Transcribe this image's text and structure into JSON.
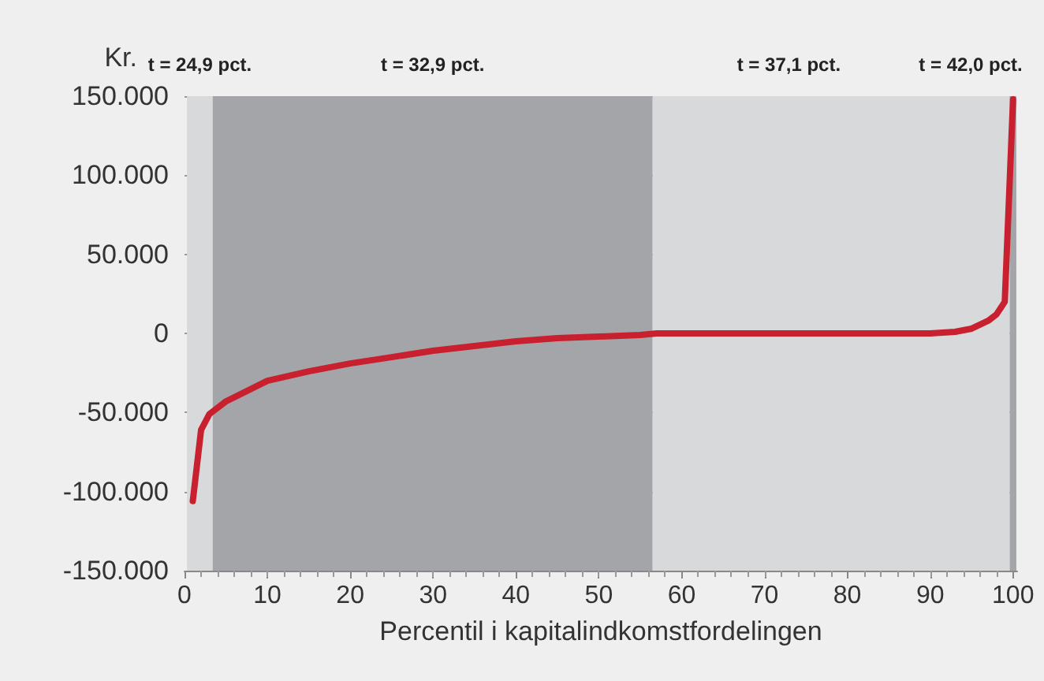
{
  "chart_data": {
    "type": "line",
    "ylabel": "Kr.",
    "xlabel": "Percentil i kapitalindkomstfordelingen",
    "x": [
      1,
      2,
      3,
      5,
      10,
      15,
      20,
      25,
      30,
      35,
      40,
      45,
      50,
      55,
      57,
      90,
      93,
      95,
      97,
      98,
      99,
      100
    ],
    "series": [
      {
        "color": "#c8202f",
        "values": [
          -106000,
          -61000,
          -51000,
          -43000,
          -30000,
          -24000,
          -19000,
          -15000,
          -11000,
          -8000,
          -5000,
          -3000,
          -2000,
          -1000,
          0,
          0,
          1000,
          3000,
          8000,
          12000,
          20000,
          148000
        ]
      }
    ],
    "xlim": [
      0,
      100.5
    ],
    "xticks": [
      0,
      10,
      20,
      30,
      40,
      50,
      60,
      70,
      80,
      90,
      100
    ],
    "ylim": [
      -150000,
      150000
    ],
    "yticks": [
      {
        "value": -150000,
        "label": "-150.000"
      },
      {
        "value": -100000,
        "label": "-100.000"
      },
      {
        "value": -50000,
        "label": "-50.000"
      },
      {
        "value": 0,
        "label": "0"
      },
      {
        "value": 50000,
        "label": "50.000"
      },
      {
        "value": 100000,
        "label": "100.000"
      },
      {
        "value": 150000,
        "label": "150.000"
      }
    ],
    "bands": [
      {
        "axis": "x",
        "from": 0.3,
        "to": 3.4,
        "label": "t = 24,9 pct.",
        "color": "#d8d9db"
      },
      {
        "axis": "x",
        "from": 3.4,
        "to": 56.5,
        "label": "t = 32,9 pct.",
        "color": "#a3a5a8"
      },
      {
        "axis": "x",
        "from": 56.5,
        "to": 99.6,
        "label": "t = 37,1 pct.",
        "color": "#d8d9db"
      },
      {
        "axis": "x",
        "from": 99.6,
        "to": 100.4,
        "label": "t = 42,0 pct.",
        "color": "#a3a5a8"
      }
    ],
    "grid": "y",
    "marker": "none",
    "line_style": "solid"
  }
}
